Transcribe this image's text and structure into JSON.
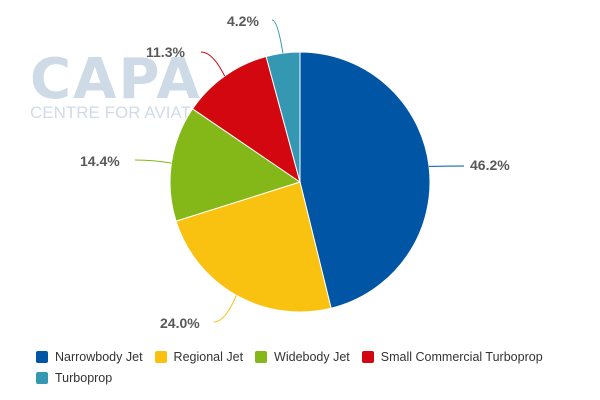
{
  "watermark": {
    "main": "CAPA",
    "sub": "CENTRE FOR AVIATION"
  },
  "chart_data": {
    "type": "pie",
    "title": "",
    "labels": [
      "Narrowbody Jet",
      "Regional Jet",
      "Widebody Jet",
      "Small Commercial Turboprop",
      "Turboprop"
    ],
    "values": [
      46.2,
      24.0,
      14.4,
      11.3,
      4.2
    ],
    "value_labels": [
      "46.2%",
      "24.0%",
      "14.4%",
      "11.3%",
      "4.2%"
    ],
    "colors": [
      "#0055a5",
      "#f9c110",
      "#84b818",
      "#d2070f",
      "#3598b3"
    ],
    "start_angle": "12 o'clock",
    "direction": "clockwise",
    "legend_placement": "bottom"
  }
}
